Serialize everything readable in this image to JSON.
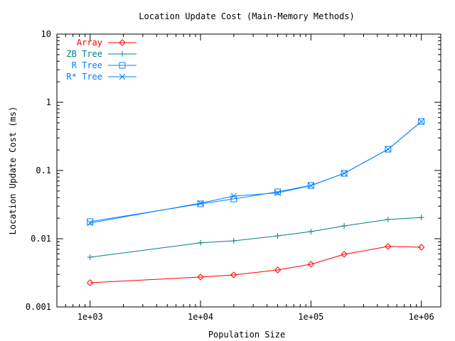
{
  "chart_data": {
    "type": "line",
    "title": "Location Update Cost (Main-Memory Methods)",
    "xlabel": "Population Size",
    "ylabel": "Location Update Cost (ms)",
    "xscale": "log",
    "yscale": "log",
    "xlim": [
      500,
      1500000
    ],
    "ylim": [
      0.001,
      10
    ],
    "grid": false,
    "legend_position": "top-left",
    "x_ticks": [
      {
        "v": 1000,
        "label": "1e+03"
      },
      {
        "v": 10000,
        "label": "1e+04"
      },
      {
        "v": 100000,
        "label": "1e+05"
      },
      {
        "v": 1000000,
        "label": "1e+06"
      }
    ],
    "y_ticks": [
      {
        "v": 0.001,
        "label": "0.001"
      },
      {
        "v": 0.01,
        "label": "0.01"
      },
      {
        "v": 0.1,
        "label": "0.1"
      },
      {
        "v": 1,
        "label": "1"
      },
      {
        "v": 10,
        "label": "10"
      }
    ],
    "x": [
      1000,
      10000,
      20000,
      50000,
      100000,
      200000,
      500000,
      1000000
    ],
    "series": [
      {
        "name": "Array",
        "color": "#ff0000",
        "marker": "diamond",
        "values": [
          0.00226,
          0.00274,
          0.00294,
          0.00348,
          0.00422,
          0.0059,
          0.0077,
          0.0075
        ]
      },
      {
        "name": "ZB Tree",
        "color": "#008080",
        "marker": "plus",
        "values": [
          0.00536,
          0.0087,
          0.0093,
          0.011,
          0.0127,
          0.0154,
          0.0191,
          0.0205
        ]
      },
      {
        "name": "R Tree",
        "color": "#0080ff",
        "marker": "square",
        "values": [
          0.0178,
          0.0324,
          0.0383,
          0.0487,
          0.0604,
          0.0908,
          0.205,
          0.523
        ]
      },
      {
        "name": "R* Tree",
        "color": "#0080ff",
        "marker": "cross",
        "values": [
          0.017,
          0.0332,
          0.0422,
          0.047,
          0.06,
          0.091,
          0.205,
          0.52
        ]
      }
    ]
  }
}
